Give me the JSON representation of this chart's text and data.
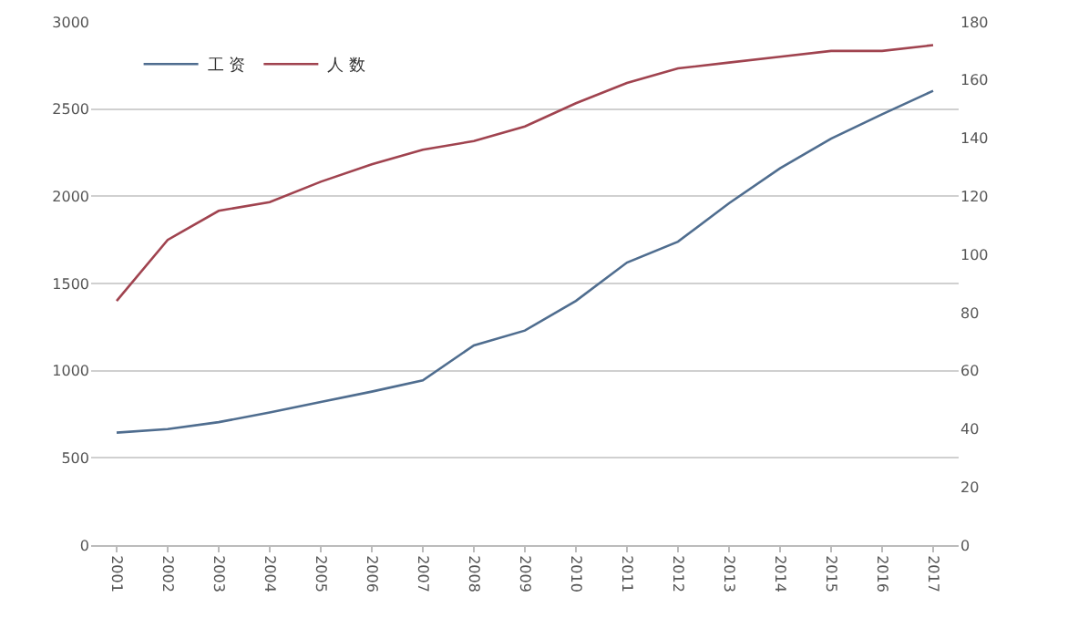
{
  "chart_data": {
    "type": "line",
    "categories": [
      "2001",
      "2002",
      "2003",
      "2004",
      "2005",
      "2006",
      "2007",
      "2008",
      "2009",
      "2010",
      "2011",
      "2012",
      "2013",
      "2014",
      "2015",
      "2016",
      "2017"
    ],
    "series": [
      {
        "name": "工 资",
        "color": "#4f6d8f",
        "values": [
          645,
          665,
          705,
          760,
          820,
          880,
          945,
          1145,
          1230,
          1400,
          1620,
          1740,
          1960,
          2160,
          2330,
          2470,
          2605
        ]
      },
      {
        "name": "人 数",
        "color": "#a0434f",
        "axis": "y2",
        "values": [
          84,
          105,
          115,
          118,
          125,
          131,
          136,
          139,
          144,
          152,
          159,
          164,
          166,
          168,
          170,
          170,
          172
        ]
      }
    ],
    "ylim": [
      0,
      3000
    ],
    "yticks": [
      0,
      500,
      1000,
      1500,
      2000,
      2500,
      3000
    ],
    "y2lim": [
      0,
      180
    ],
    "y2ticks": [
      0,
      20,
      40,
      60,
      80,
      100,
      120,
      140,
      160,
      180
    ],
    "grid": "y",
    "legend": "top left",
    "marker": "none",
    "line_style": "solid"
  }
}
